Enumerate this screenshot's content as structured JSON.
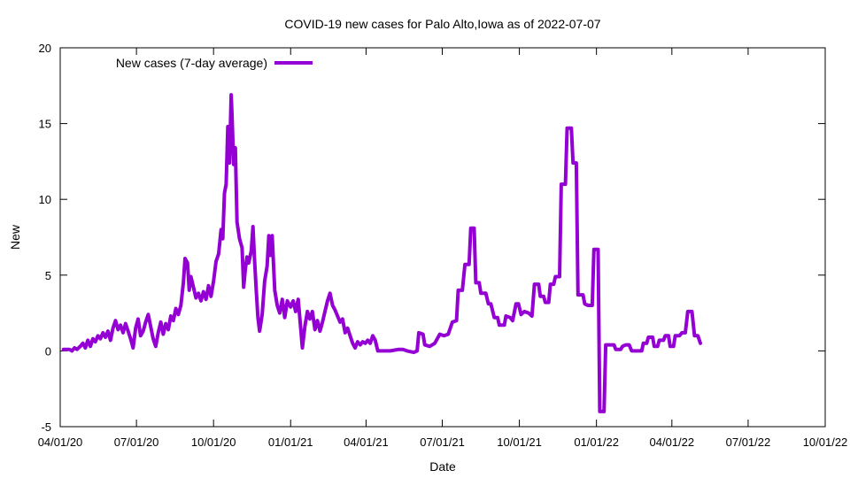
{
  "chart_data": {
    "type": "line",
    "title": "COVID-19 new cases for Palo Alto,Iowa as of 2022-07-07",
    "xlabel": "Date",
    "ylabel": "New",
    "xlim": [
      "2020-04-01",
      "2022-10-01"
    ],
    "ylim": [
      -5,
      20
    ],
    "grid": false,
    "legend_position": "top-left",
    "x_ticks": [
      "2020-04-01",
      "2020-07-01",
      "2020-10-01",
      "2021-01-01",
      "2021-04-01",
      "2021-07-01",
      "2021-10-01",
      "2022-01-01",
      "2022-04-01",
      "2022-07-01",
      "2022-10-01"
    ],
    "x_tick_labels": [
      "04/01/20",
      "07/01/20",
      "10/01/20",
      "01/01/21",
      "04/01/21",
      "07/01/21",
      "10/01/21",
      "01/01/22",
      "04/01/22",
      "07/01/22",
      "10/01/22"
    ],
    "y_ticks": [
      -5,
      0,
      5,
      10,
      15,
      20
    ],
    "y_tick_labels": [
      "-5",
      "0",
      "5",
      "10",
      "15",
      "20"
    ],
    "series": [
      {
        "name": "New cases (7-day average)",
        "color": "#9400d3",
        "points": [
          [
            "2020-04-05",
            0.1
          ],
          [
            "2020-04-12",
            0.1
          ],
          [
            "2020-04-15",
            0.0
          ],
          [
            "2020-04-18",
            0.2
          ],
          [
            "2020-04-21",
            0.1
          ],
          [
            "2020-04-25",
            0.3
          ],
          [
            "2020-04-28",
            0.5
          ],
          [
            "2020-05-01",
            0.2
          ],
          [
            "2020-05-04",
            0.7
          ],
          [
            "2020-05-07",
            0.3
          ],
          [
            "2020-05-10",
            0.8
          ],
          [
            "2020-05-13",
            0.6
          ],
          [
            "2020-05-16",
            1.0
          ],
          [
            "2020-05-19",
            0.8
          ],
          [
            "2020-05-22",
            1.2
          ],
          [
            "2020-05-25",
            0.9
          ],
          [
            "2020-05-28",
            1.3
          ],
          [
            "2020-05-31",
            0.7
          ],
          [
            "2020-06-03",
            1.5
          ],
          [
            "2020-06-06",
            2.0
          ],
          [
            "2020-06-09",
            1.4
          ],
          [
            "2020-06-12",
            1.7
          ],
          [
            "2020-06-15",
            1.2
          ],
          [
            "2020-06-18",
            1.8
          ],
          [
            "2020-06-21",
            1.3
          ],
          [
            "2020-06-24",
            0.8
          ],
          [
            "2020-06-27",
            0.2
          ],
          [
            "2020-06-30",
            1.5
          ],
          [
            "2020-07-03",
            2.1
          ],
          [
            "2020-07-06",
            1.0
          ],
          [
            "2020-07-09",
            1.3
          ],
          [
            "2020-07-12",
            1.9
          ],
          [
            "2020-07-15",
            2.4
          ],
          [
            "2020-07-18",
            1.6
          ],
          [
            "2020-07-21",
            0.8
          ],
          [
            "2020-07-24",
            0.3
          ],
          [
            "2020-07-27",
            1.2
          ],
          [
            "2020-07-30",
            1.9
          ],
          [
            "2020-08-02",
            1.1
          ],
          [
            "2020-08-05",
            1.8
          ],
          [
            "2020-08-08",
            1.4
          ],
          [
            "2020-08-11",
            2.3
          ],
          [
            "2020-08-14",
            2.0
          ],
          [
            "2020-08-17",
            2.8
          ],
          [
            "2020-08-20",
            2.4
          ],
          [
            "2020-08-23",
            3.0
          ],
          [
            "2020-08-26",
            4.5
          ],
          [
            "2020-08-28",
            6.1
          ],
          [
            "2020-08-31",
            5.8
          ],
          [
            "2020-09-02",
            4.0
          ],
          [
            "2020-09-04",
            4.9
          ],
          [
            "2020-09-07",
            4.2
          ],
          [
            "2020-09-10",
            3.5
          ],
          [
            "2020-09-13",
            3.8
          ],
          [
            "2020-09-16",
            3.3
          ],
          [
            "2020-09-19",
            3.9
          ],
          [
            "2020-09-22",
            3.4
          ],
          [
            "2020-09-25",
            4.3
          ],
          [
            "2020-09-28",
            3.6
          ],
          [
            "2020-10-01",
            4.6
          ],
          [
            "2020-10-04",
            5.9
          ],
          [
            "2020-10-07",
            6.4
          ],
          [
            "2020-10-10",
            8.0
          ],
          [
            "2020-10-12",
            7.4
          ],
          [
            "2020-10-14",
            10.4
          ],
          [
            "2020-10-16",
            11.0
          ],
          [
            "2020-10-18",
            14.8
          ],
          [
            "2020-10-20",
            12.4
          ],
          [
            "2020-10-22",
            16.9
          ],
          [
            "2020-10-23",
            15.6
          ],
          [
            "2020-10-25",
            12.3
          ],
          [
            "2020-10-27",
            13.4
          ],
          [
            "2020-10-29",
            8.5
          ],
          [
            "2020-11-01",
            7.4
          ],
          [
            "2020-11-04",
            6.8
          ],
          [
            "2020-11-06",
            4.2
          ],
          [
            "2020-11-08",
            5.4
          ],
          [
            "2020-11-10",
            6.2
          ],
          [
            "2020-11-12",
            5.8
          ],
          [
            "2020-11-15",
            6.6
          ],
          [
            "2020-11-17",
            8.2
          ],
          [
            "2020-11-19",
            6.0
          ],
          [
            "2020-11-21",
            4.0
          ],
          [
            "2020-11-23",
            2.2
          ],
          [
            "2020-11-25",
            1.3
          ],
          [
            "2020-11-28",
            2.4
          ],
          [
            "2020-12-01",
            4.6
          ],
          [
            "2020-12-04",
            5.6
          ],
          [
            "2020-12-06",
            7.6
          ],
          [
            "2020-12-08",
            6.3
          ],
          [
            "2020-12-10",
            7.6
          ],
          [
            "2020-12-13",
            4.0
          ],
          [
            "2020-12-16",
            3.0
          ],
          [
            "2020-12-19",
            2.5
          ],
          [
            "2020-12-22",
            3.4
          ],
          [
            "2020-12-25",
            2.2
          ],
          [
            "2020-12-28",
            3.3
          ],
          [
            "2021-01-01",
            2.9
          ],
          [
            "2021-01-04",
            3.3
          ],
          [
            "2021-01-07",
            2.6
          ],
          [
            "2021-01-10",
            3.4
          ],
          [
            "2021-01-13",
            1.5
          ],
          [
            "2021-01-15",
            0.2
          ],
          [
            "2021-01-18",
            1.6
          ],
          [
            "2021-01-21",
            2.6
          ],
          [
            "2021-01-24",
            2.1
          ],
          [
            "2021-01-27",
            2.6
          ],
          [
            "2021-01-30",
            1.4
          ],
          [
            "2021-02-02",
            2.0
          ],
          [
            "2021-02-05",
            1.3
          ],
          [
            "2021-02-08",
            1.9
          ],
          [
            "2021-02-11",
            2.6
          ],
          [
            "2021-02-14",
            3.3
          ],
          [
            "2021-02-17",
            3.8
          ],
          [
            "2021-02-20",
            3.0
          ],
          [
            "2021-02-23",
            2.7
          ],
          [
            "2021-02-26",
            2.3
          ],
          [
            "2021-03-01",
            1.9
          ],
          [
            "2021-03-04",
            2.1
          ],
          [
            "2021-03-07",
            1.2
          ],
          [
            "2021-03-10",
            1.5
          ],
          [
            "2021-03-13",
            1.0
          ],
          [
            "2021-03-16",
            0.5
          ],
          [
            "2021-03-19",
            0.2
          ],
          [
            "2021-03-22",
            0.6
          ],
          [
            "2021-03-25",
            0.4
          ],
          [
            "2021-03-28",
            0.6
          ],
          [
            "2021-03-31",
            0.5
          ],
          [
            "2021-04-03",
            0.7
          ],
          [
            "2021-04-06",
            0.5
          ],
          [
            "2021-04-09",
            1.0
          ],
          [
            "2021-04-12",
            0.7
          ],
          [
            "2021-04-15",
            0.0
          ],
          [
            "2021-04-20",
            0.0
          ],
          [
            "2021-04-30",
            0.0
          ],
          [
            "2021-05-10",
            0.1
          ],
          [
            "2021-05-15",
            0.1
          ],
          [
            "2021-05-20",
            0.0
          ],
          [
            "2021-05-28",
            -0.1
          ],
          [
            "2021-06-01",
            0.0
          ],
          [
            "2021-06-03",
            1.2
          ],
          [
            "2021-06-08",
            1.1
          ],
          [
            "2021-06-10",
            0.4
          ],
          [
            "2021-06-16",
            0.3
          ],
          [
            "2021-06-22",
            0.5
          ],
          [
            "2021-06-28",
            1.1
          ],
          [
            "2021-07-03",
            1.0
          ],
          [
            "2021-07-08",
            1.1
          ],
          [
            "2021-07-13",
            1.9
          ],
          [
            "2021-07-18",
            2.0
          ],
          [
            "2021-07-20",
            4.0
          ],
          [
            "2021-07-25",
            4.0
          ],
          [
            "2021-07-28",
            5.7
          ],
          [
            "2021-08-02",
            5.7
          ],
          [
            "2021-08-04",
            8.1
          ],
          [
            "2021-08-08",
            8.1
          ],
          [
            "2021-08-10",
            4.5
          ],
          [
            "2021-08-14",
            4.5
          ],
          [
            "2021-08-16",
            3.8
          ],
          [
            "2021-08-22",
            3.8
          ],
          [
            "2021-08-25",
            3.1
          ],
          [
            "2021-08-28",
            3.1
          ],
          [
            "2021-09-01",
            2.2
          ],
          [
            "2021-09-05",
            2.2
          ],
          [
            "2021-09-07",
            1.7
          ],
          [
            "2021-09-13",
            1.7
          ],
          [
            "2021-09-15",
            2.3
          ],
          [
            "2021-09-20",
            2.2
          ],
          [
            "2021-09-23",
            2.0
          ],
          [
            "2021-09-27",
            3.1
          ],
          [
            "2021-09-30",
            3.1
          ],
          [
            "2021-10-03",
            2.4
          ],
          [
            "2021-10-07",
            2.6
          ],
          [
            "2021-10-12",
            2.5
          ],
          [
            "2021-10-16",
            2.3
          ],
          [
            "2021-10-19",
            4.4
          ],
          [
            "2021-10-24",
            4.4
          ],
          [
            "2021-10-26",
            3.6
          ],
          [
            "2021-10-30",
            3.6
          ],
          [
            "2021-11-01",
            3.2
          ],
          [
            "2021-11-05",
            3.2
          ],
          [
            "2021-11-07",
            4.4
          ],
          [
            "2021-11-11",
            4.4
          ],
          [
            "2021-11-13",
            4.9
          ],
          [
            "2021-11-18",
            4.9
          ],
          [
            "2021-11-20",
            11.0
          ],
          [
            "2021-11-25",
            11.0
          ],
          [
            "2021-11-27",
            14.7
          ],
          [
            "2021-12-02",
            14.7
          ],
          [
            "2021-12-04",
            12.4
          ],
          [
            "2021-12-08",
            12.4
          ],
          [
            "2021-12-10",
            3.7
          ],
          [
            "2021-12-16",
            3.7
          ],
          [
            "2021-12-18",
            3.1
          ],
          [
            "2021-12-22",
            3.0
          ],
          [
            "2021-12-27",
            3.0
          ],
          [
            "2021-12-29",
            6.7
          ],
          [
            "2022-01-03",
            6.7
          ],
          [
            "2022-01-05",
            -4.0
          ],
          [
            "2022-01-10",
            -4.0
          ],
          [
            "2022-01-12",
            0.4
          ],
          [
            "2022-01-22",
            0.4
          ],
          [
            "2022-01-24",
            0.1
          ],
          [
            "2022-01-30",
            0.1
          ],
          [
            "2022-02-01",
            0.3
          ],
          [
            "2022-02-05",
            0.4
          ],
          [
            "2022-02-09",
            0.4
          ],
          [
            "2022-02-12",
            0.0
          ],
          [
            "2022-02-24",
            0.0
          ],
          [
            "2022-02-26",
            0.5
          ],
          [
            "2022-03-02",
            0.5
          ],
          [
            "2022-03-04",
            0.9
          ],
          [
            "2022-03-09",
            0.9
          ],
          [
            "2022-03-11",
            0.3
          ],
          [
            "2022-03-15",
            0.3
          ],
          [
            "2022-03-17",
            0.7
          ],
          [
            "2022-03-22",
            0.7
          ],
          [
            "2022-03-24",
            1.0
          ],
          [
            "2022-03-28",
            1.0
          ],
          [
            "2022-03-30",
            0.3
          ],
          [
            "2022-04-03",
            0.3
          ],
          [
            "2022-04-05",
            1.0
          ],
          [
            "2022-04-10",
            1.0
          ],
          [
            "2022-04-13",
            1.2
          ],
          [
            "2022-04-17",
            1.2
          ],
          [
            "2022-04-20",
            2.6
          ],
          [
            "2022-04-25",
            2.6
          ],
          [
            "2022-04-28",
            1.0
          ],
          [
            "2022-05-02",
            1.0
          ],
          [
            "2022-05-05",
            0.5
          ]
        ]
      }
    ]
  }
}
